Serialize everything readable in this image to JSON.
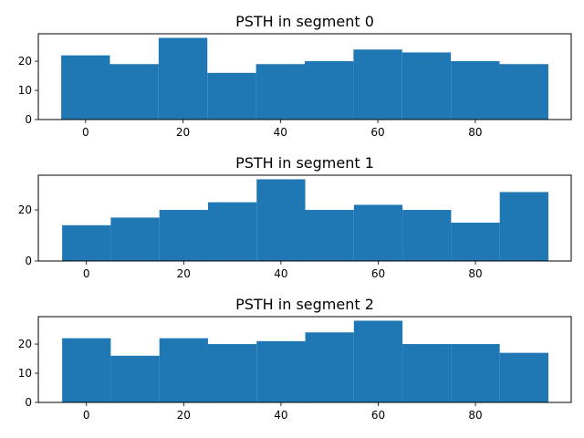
{
  "chart_data": [
    {
      "type": "bar",
      "title": "PSTH in segment 0",
      "xlabel": "",
      "ylabel": "",
      "bin_edges": [
        -5,
        5,
        15,
        25,
        35,
        45,
        55,
        65,
        75,
        85,
        95
      ],
      "values": [
        22,
        19,
        28,
        16,
        19,
        20,
        24,
        23,
        20,
        19
      ],
      "xlim": [
        -9.7,
        99.7
      ],
      "ylim": [
        0,
        29.4
      ],
      "xticks": [
        0,
        20,
        40,
        60,
        80
      ],
      "yticks": [
        0,
        10,
        20
      ],
      "color": "#1f77b4",
      "grid": false
    },
    {
      "type": "bar",
      "title": "PSTH in segment 1",
      "xlabel": "",
      "ylabel": "",
      "bin_edges": [
        -5,
        5,
        15,
        25,
        35,
        45,
        55,
        65,
        75,
        85,
        95
      ],
      "values": [
        14,
        17,
        20,
        23,
        32,
        20,
        22,
        20,
        15,
        27
      ],
      "xlim": [
        -9.9,
        99.7
      ],
      "ylim": [
        0,
        33.6
      ],
      "xticks": [
        0,
        20,
        40,
        60,
        80
      ],
      "yticks": [
        0,
        20
      ],
      "color": "#1f77b4",
      "grid": false
    },
    {
      "type": "bar",
      "title": "PSTH in segment 2",
      "xlabel": "",
      "ylabel": "",
      "bin_edges": [
        -5,
        5,
        15,
        25,
        35,
        45,
        55,
        65,
        75,
        85,
        95
      ],
      "values": [
        22,
        16,
        22,
        20,
        21,
        24,
        28,
        20,
        20,
        17
      ],
      "xlim": [
        -9.9,
        99.7
      ],
      "ylim": [
        0,
        29.4
      ],
      "xticks": [
        0,
        20,
        40,
        60,
        80
      ],
      "yticks": [
        0,
        10,
        20
      ],
      "color": "#1f77b4",
      "grid": false
    }
  ]
}
